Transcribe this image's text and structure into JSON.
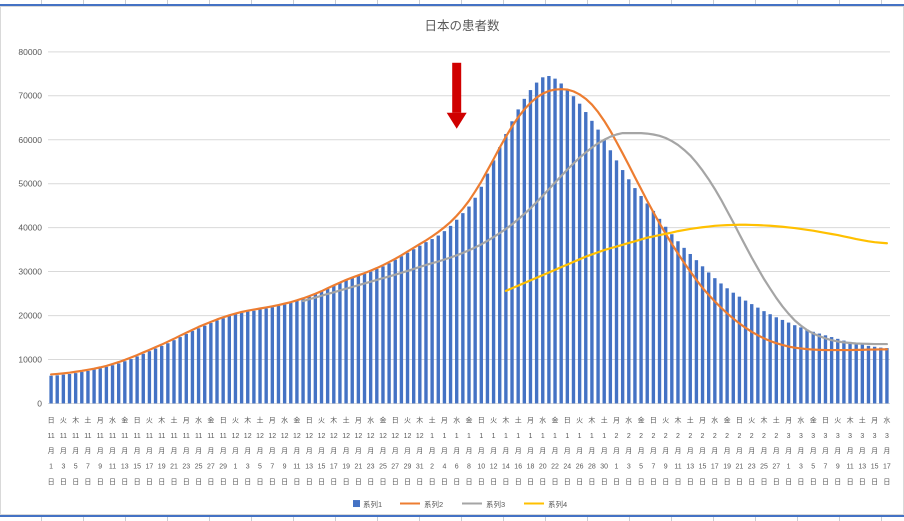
{
  "sheet": {
    "gridline_tick_color": "#c9cdd3",
    "border_line_color": "#4472C4"
  },
  "chart_data": {
    "type": "combo-bar-line",
    "title": "日本の患者数",
    "ylim": [
      0,
      80000
    ],
    "y_ticks": [
      0,
      10000,
      20000,
      30000,
      40000,
      50000,
      60000,
      70000,
      80000
    ],
    "grid_color": "#D9D9D9",
    "axis_color": "#D9D9D9",
    "text_color": "#595959",
    "x_interval": 2,
    "x_label_suffixes": {
      "month": "月",
      "day": "日"
    },
    "x_labels": [
      {
        "w": "日",
        "m": "11",
        "d": "1"
      },
      {
        "w": "火",
        "m": "11",
        "d": "3"
      },
      {
        "w": "木",
        "m": "11",
        "d": "5"
      },
      {
        "w": "土",
        "m": "11",
        "d": "7"
      },
      {
        "w": "月",
        "m": "11",
        "d": "9"
      },
      {
        "w": "水",
        "m": "11",
        "d": "11"
      },
      {
        "w": "金",
        "m": "11",
        "d": "13"
      },
      {
        "w": "日",
        "m": "11",
        "d": "15"
      },
      {
        "w": "火",
        "m": "11",
        "d": "17"
      },
      {
        "w": "木",
        "m": "11",
        "d": "19"
      },
      {
        "w": "土",
        "m": "11",
        "d": "21"
      },
      {
        "w": "月",
        "m": "11",
        "d": "23"
      },
      {
        "w": "水",
        "m": "11",
        "d": "25"
      },
      {
        "w": "金",
        "m": "11",
        "d": "27"
      },
      {
        "w": "日",
        "m": "11",
        "d": "29"
      },
      {
        "w": "火",
        "m": "12",
        "d": "1"
      },
      {
        "w": "木",
        "m": "12",
        "d": "3"
      },
      {
        "w": "土",
        "m": "12",
        "d": "5"
      },
      {
        "w": "月",
        "m": "12",
        "d": "7"
      },
      {
        "w": "水",
        "m": "12",
        "d": "9"
      },
      {
        "w": "金",
        "m": "12",
        "d": "11"
      },
      {
        "w": "日",
        "m": "12",
        "d": "13"
      },
      {
        "w": "火",
        "m": "12",
        "d": "15"
      },
      {
        "w": "木",
        "m": "12",
        "d": "17"
      },
      {
        "w": "土",
        "m": "12",
        "d": "19"
      },
      {
        "w": "月",
        "m": "12",
        "d": "21"
      },
      {
        "w": "水",
        "m": "12",
        "d": "23"
      },
      {
        "w": "金",
        "m": "12",
        "d": "25"
      },
      {
        "w": "日",
        "m": "12",
        "d": "27"
      },
      {
        "w": "火",
        "m": "12",
        "d": "29"
      },
      {
        "w": "木",
        "m": "12",
        "d": "31"
      },
      {
        "w": "土",
        "m": "1",
        "d": "2"
      },
      {
        "w": "月",
        "m": "1",
        "d": "4"
      },
      {
        "w": "水",
        "m": "1",
        "d": "6"
      },
      {
        "w": "金",
        "m": "1",
        "d": "8"
      },
      {
        "w": "日",
        "m": "1",
        "d": "10"
      },
      {
        "w": "火",
        "m": "1",
        "d": "12"
      },
      {
        "w": "木",
        "m": "1",
        "d": "14"
      },
      {
        "w": "土",
        "m": "1",
        "d": "16"
      },
      {
        "w": "月",
        "m": "1",
        "d": "18"
      },
      {
        "w": "水",
        "m": "1",
        "d": "20"
      },
      {
        "w": "金",
        "m": "1",
        "d": "22"
      },
      {
        "w": "日",
        "m": "1",
        "d": "24"
      },
      {
        "w": "火",
        "m": "1",
        "d": "26"
      },
      {
        "w": "木",
        "m": "1",
        "d": "28"
      },
      {
        "w": "土",
        "m": "1",
        "d": "30"
      },
      {
        "w": "月",
        "m": "2",
        "d": "1"
      },
      {
        "w": "水",
        "m": "2",
        "d": "3"
      },
      {
        "w": "金",
        "m": "2",
        "d": "5"
      },
      {
        "w": "日",
        "m": "2",
        "d": "7"
      },
      {
        "w": "火",
        "m": "2",
        "d": "9"
      },
      {
        "w": "木",
        "m": "2",
        "d": "11"
      },
      {
        "w": "土",
        "m": "2",
        "d": "13"
      },
      {
        "w": "月",
        "m": "2",
        "d": "15"
      },
      {
        "w": "水",
        "m": "2",
        "d": "17"
      },
      {
        "w": "金",
        "m": "2",
        "d": "19"
      },
      {
        "w": "日",
        "m": "2",
        "d": "21"
      },
      {
        "w": "火",
        "m": "2",
        "d": "23"
      },
      {
        "w": "木",
        "m": "2",
        "d": "25"
      },
      {
        "w": "土",
        "m": "2",
        "d": "27"
      },
      {
        "w": "月",
        "m": "3",
        "d": "1"
      },
      {
        "w": "水",
        "m": "3",
        "d": "3"
      },
      {
        "w": "金",
        "m": "3",
        "d": "5"
      },
      {
        "w": "日",
        "m": "3",
        "d": "7"
      },
      {
        "w": "火",
        "m": "3",
        "d": "9"
      },
      {
        "w": "木",
        "m": "3",
        "d": "11"
      },
      {
        "w": "土",
        "m": "3",
        "d": "13"
      },
      {
        "w": "月",
        "m": "3",
        "d": "15"
      },
      {
        "w": "水",
        "m": "3",
        "d": "17"
      }
    ],
    "series": [
      {
        "name": "系列1",
        "type": "bar",
        "color": "#4472C4",
        "start_index": 0,
        "values": [
          6300,
          6400,
          6550,
          6700,
          6900,
          7150,
          7400,
          7700,
          8000,
          8350,
          8700,
          9100,
          9600,
          10100,
          10700,
          11300,
          11900,
          12500,
          13100,
          13700,
          14400,
          15100,
          15800,
          16500,
          17100,
          17700,
          18300,
          18900,
          19400,
          19900,
          20300,
          20600,
          20900,
          21100,
          21400,
          21600,
          21900,
          22200,
          22500,
          22900,
          23300,
          23800,
          24300,
          24900,
          25500,
          26100,
          26800,
          27500,
          28100,
          28600,
          29000,
          29500,
          30000,
          30600,
          31200,
          31900,
          32700,
          33500,
          34300,
          35100,
          35900,
          36700,
          37400,
          38200,
          39200,
          40400,
          41800,
          43300,
          44800,
          46800,
          49300,
          52300,
          55300,
          58300,
          61300,
          64200,
          66900,
          69300,
          71300,
          73000,
          74200,
          74500,
          73900,
          72800,
          71400,
          69900,
          68200,
          66300,
          64300,
          62300,
          60000,
          57600,
          55300,
          53100,
          51000,
          49000,
          47200,
          45500,
          43800,
          42000,
          40200,
          38500,
          36900,
          35400,
          34000,
          32600,
          31200,
          29800,
          28500,
          27300,
          26200,
          25200,
          24300,
          23400,
          22600,
          21800,
          21000,
          20300,
          19600,
          19000,
          18400,
          17800,
          17300,
          16800,
          16300,
          15900,
          15500,
          15100,
          14700,
          14300,
          14000,
          13700,
          13400,
          13100,
          12900,
          12700,
          12600
        ]
      },
      {
        "name": "系列2",
        "type": "line",
        "color": "#ED7D31",
        "start_index": 0,
        "values": [
          6600,
          6700,
          6850,
          7000,
          7200,
          7400,
          7650,
          7900,
          8200,
          8550,
          8950,
          9400,
          9900,
          10450,
          11000,
          11600,
          12200,
          12800,
          13400,
          14050,
          14700,
          15400,
          16100,
          16750,
          17400,
          18000,
          18550,
          19100,
          19600,
          20050,
          20450,
          20800,
          21100,
          21350,
          21600,
          21850,
          22100,
          22400,
          22700,
          23050,
          23450,
          23900,
          24400,
          24950,
          25550,
          26200,
          26850,
          27500,
          28100,
          28650,
          29150,
          29650,
          30200,
          30800,
          31450,
          32150,
          32900,
          33700,
          34550,
          35400,
          36250,
          37100,
          38000,
          39000,
          40100,
          41300,
          42700,
          44300,
          46100,
          48200,
          50500,
          53000,
          55600,
          58200,
          60700,
          63000,
          65100,
          66900,
          68400,
          69600,
          70500,
          71100,
          71400,
          71500,
          71400,
          71000,
          70300,
          69300,
          68000,
          66300,
          64300,
          62000,
          59500,
          56900,
          54200,
          51500,
          48800,
          46100,
          43500,
          41000,
          38600,
          36300,
          34100,
          32000,
          30000,
          28100,
          26300,
          24700,
          23200,
          21800,
          20500,
          19300,
          18200,
          17200,
          16300,
          15500,
          14800,
          14200,
          13700,
          13300,
          12950,
          12700,
          12500,
          12350,
          12250,
          12200,
          12150,
          12150,
          12150,
          12150,
          12150,
          12200,
          12200,
          12250,
          12250,
          12300,
          12300
        ]
      },
      {
        "name": "系列3",
        "type": "line",
        "color": "#A5A5A5",
        "start_index": 41,
        "values": [
          23300,
          23700,
          24100,
          24500,
          24900,
          25300,
          25700,
          26100,
          26500,
          26900,
          27300,
          27700,
          28100,
          28500,
          28900,
          29300,
          29700,
          30150,
          30600,
          31050,
          31500,
          31900,
          32300,
          32750,
          33200,
          33700,
          34250,
          34850,
          35500,
          36200,
          37000,
          37850,
          38750,
          39700,
          40750,
          41900,
          43100,
          44400,
          45800,
          47250,
          48750,
          50250,
          51750,
          53200,
          54600,
          55900,
          57100,
          58200,
          59200,
          60000,
          60700,
          61200,
          61500,
          61500,
          61500,
          61500,
          61400,
          61200,
          60900,
          60400,
          59700,
          58800,
          57700,
          56400,
          54800,
          53000,
          51000,
          48800,
          46400,
          43800,
          41200,
          38500,
          35800,
          33200,
          30700,
          28300,
          26100,
          24000,
          22100,
          20400,
          18900,
          17700,
          16700,
          15900,
          15300,
          14800,
          14400,
          14100,
          13900,
          13750,
          13650,
          13600,
          13550,
          13500,
          13500,
          13500
        ]
      },
      {
        "name": "系列4",
        "type": "line",
        "color": "#FFC000",
        "start_index": 74,
        "values": [
          25600,
          26200,
          26800,
          27400,
          28000,
          28600,
          29200,
          29800,
          30400,
          31000,
          31600,
          32200,
          32800,
          33400,
          33900,
          34400,
          34900,
          35300,
          35700,
          36100,
          36500,
          36900,
          37300,
          37700,
          38000,
          38300,
          38600,
          38900,
          39200,
          39450,
          39700,
          39900,
          40100,
          40250,
          40400,
          40500,
          40570,
          40620,
          40650,
          40650,
          40620,
          40570,
          40500,
          40420,
          40320,
          40200,
          40050,
          39900,
          39700,
          39500,
          39300,
          39050,
          38800,
          38550,
          38300,
          38000,
          37700,
          37400,
          37150,
          36900,
          36700,
          36550,
          36450
        ]
      }
    ],
    "annotation": {
      "shape": "down-arrow",
      "color": "#D00000",
      "x_index": 66,
      "y_top": 77500,
      "y_tip": 62500
    },
    "legend": {
      "position": "bottom"
    }
  }
}
